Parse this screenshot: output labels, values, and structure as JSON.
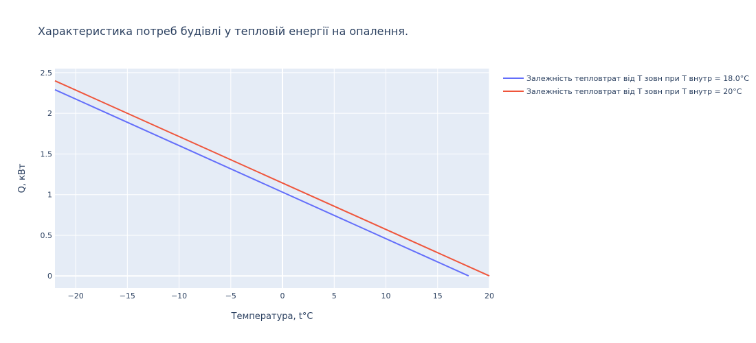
{
  "chart_data": {
    "type": "line",
    "title": "Характеристика потреб будівлі у тепловій енергії на опалення.",
    "xlabel": "Температура, t°C",
    "ylabel": "Q, кВт",
    "xlim": [
      -22,
      20
    ],
    "ylim": [
      -0.15,
      2.55
    ],
    "x_ticks": [
      -20,
      -15,
      -10,
      -5,
      0,
      5,
      10,
      15,
      20
    ],
    "x_tick_labels": [
      "−20",
      "−15",
      "−10",
      "−5",
      "0",
      "5",
      "10",
      "15",
      "20"
    ],
    "y_ticks": [
      0,
      0.5,
      1,
      1.5,
      2,
      2.5
    ],
    "y_tick_labels": [
      "0",
      "0.5",
      "1",
      "1.5",
      "2",
      "2.5"
    ],
    "grid": true,
    "legend_position": "right",
    "series": [
      {
        "name": "Залежність тепловтрат від Т зовн при Т внутр = 18.0°C",
        "color": "#636efa",
        "x": [
          -22,
          18
        ],
        "y": [
          2.29,
          0.0
        ]
      },
      {
        "name": "Залежність тепловтрат від Т зовн при Т внутр = 20°C",
        "color": "#ef553b",
        "x": [
          -22,
          20
        ],
        "y": [
          2.4,
          0.0
        ]
      }
    ]
  }
}
